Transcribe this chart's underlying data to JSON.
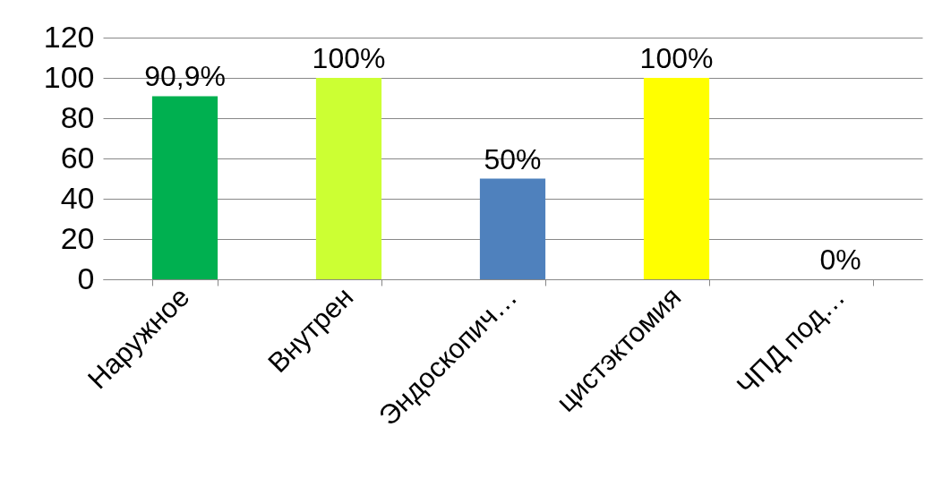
{
  "chart_data": {
    "type": "bar",
    "categories": [
      "Наружное",
      "Внутрен",
      "Эндоскопич…",
      "цистэктомия",
      "ЧПД под…"
    ],
    "values": [
      90.9,
      100,
      50,
      100,
      0
    ],
    "colors": [
      "#00b050",
      "#ccff33",
      "#4f81bd",
      "#ffff00",
      "#00b050"
    ],
    "value_labels": [
      "90,9%",
      "100%",
      "50%",
      "100%",
      "0%"
    ],
    "ylim": [
      0,
      120
    ],
    "yticks": [
      0,
      20,
      40,
      60,
      80,
      100,
      120
    ],
    "grid": "y",
    "legend": false
  }
}
